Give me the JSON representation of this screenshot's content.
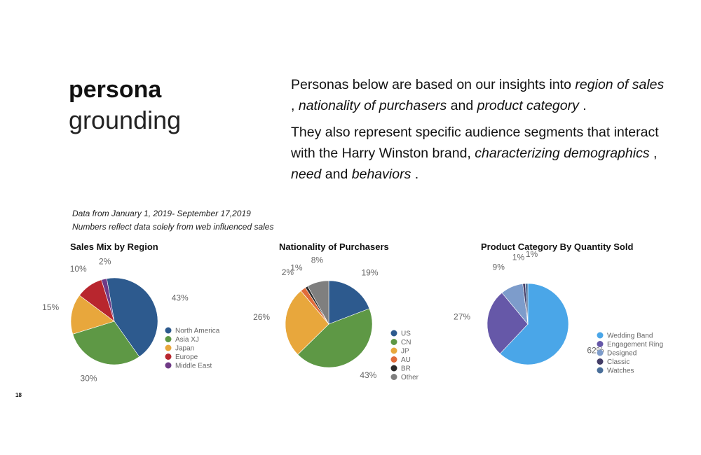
{
  "header": {
    "title_bold": "persona",
    "title_light": "grounding"
  },
  "intro": {
    "p1": [
      {
        "text": "Personas below are based on our insights into ",
        "italic": false
      },
      {
        "text": "region of sales",
        "italic": true
      },
      {
        "text": " , ",
        "italic": false
      },
      {
        "text": "nationality of purchasers",
        "italic": true
      },
      {
        "text": "  and ",
        "italic": false
      },
      {
        "text": "product category",
        "italic": true
      },
      {
        "text": " .",
        "italic": false
      }
    ],
    "p2": [
      {
        "text": "They also represent specific audience segments that interact with the Harry Winston brand,  ",
        "italic": false
      },
      {
        "text": "characterizing demographics",
        "italic": true
      },
      {
        "text": " , ",
        "italic": false
      },
      {
        "text": "need",
        "italic": true
      },
      {
        "text": "  and ",
        "italic": false
      },
      {
        "text": "behaviors",
        "italic": true
      },
      {
        "text": " .",
        "italic": false
      }
    ]
  },
  "notes": {
    "line1": "Data from January 1, 2019- September 17,2019",
    "line2": "Numbers reflect data solely from web influenced sales"
  },
  "page_number": "18",
  "chart_data": [
    {
      "type": "pie",
      "title": "Sales Mix by Region",
      "slices": [
        {
          "name": "North America",
          "value": 43,
          "label": "43%",
          "color": "#2d5a8e"
        },
        {
          "name": "Asia XJ",
          "value": 30,
          "label": "30%",
          "color": "#5e9845"
        },
        {
          "name": "Japan",
          "value": 15,
          "label": "15%",
          "color": "#e8a73c"
        },
        {
          "name": "Europe",
          "value": 10,
          "label": "10%",
          "color": "#b8262e"
        },
        {
          "name": "Middle East",
          "value": 2,
          "label": "2%",
          "color": "#6f3a86"
        }
      ],
      "legend": "right"
    },
    {
      "type": "pie",
      "title": "Nationality of Purchasers",
      "slices": [
        {
          "name": "US",
          "value": 19,
          "label": "19%",
          "color": "#2d5a8e"
        },
        {
          "name": "CN",
          "value": 43,
          "label": "43%",
          "color": "#5e9845"
        },
        {
          "name": "JP",
          "value": 26,
          "label": "26%",
          "color": "#e8a73c"
        },
        {
          "name": "AU",
          "value": 2,
          "label": "2%",
          "color": "#e06b3a"
        },
        {
          "name": "BR",
          "value": 1,
          "label": "1%",
          "color": "#2a2a2a"
        },
        {
          "name": "Other",
          "value": 8,
          "label": "8%",
          "color": "#7f7f7f"
        }
      ],
      "legend": "right"
    },
    {
      "type": "pie",
      "title": "Product Category By Quantity Sold",
      "slices": [
        {
          "name": "Wedding Band",
          "value": 62,
          "label": "62%",
          "color": "#4aa6e8"
        },
        {
          "name": "Engagement Ring",
          "value": 27,
          "label": "27%",
          "color": "#6658a8"
        },
        {
          "name": "Designed",
          "value": 9,
          "label": "9%",
          "color": "#7d9ccb"
        },
        {
          "name": "Classic",
          "value": 1,
          "label": "1%",
          "color": "#433c66"
        },
        {
          "name": "Watches",
          "value": 1,
          "label": "1%",
          "color": "#4a6f9a"
        }
      ],
      "legend": "right"
    }
  ]
}
